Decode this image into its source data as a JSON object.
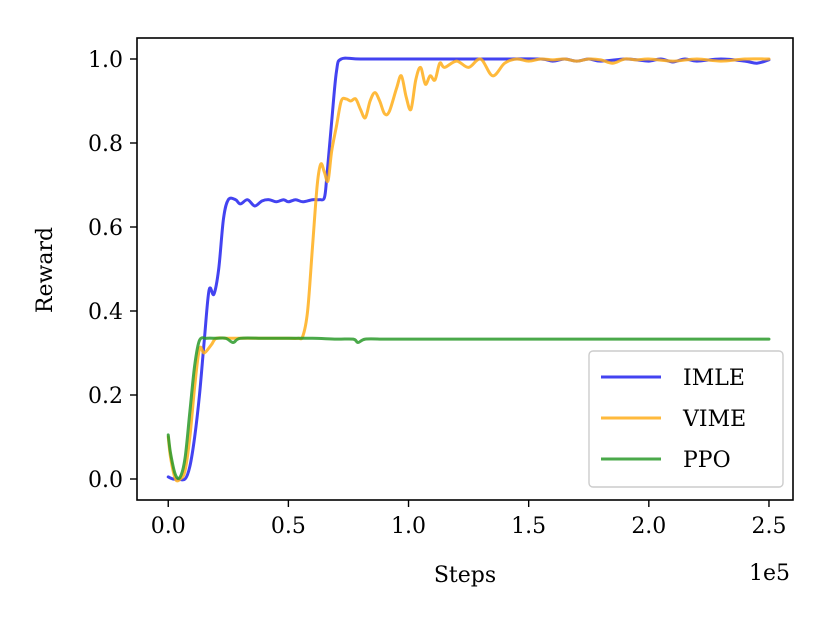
{
  "chart_data": {
    "type": "line",
    "title": "",
    "xlabel": "Steps",
    "ylabel": "Reward",
    "x_offset_label": "1e5",
    "xlim": [
      -0.13,
      2.6
    ],
    "ylim": [
      -0.05,
      1.05
    ],
    "x_ticks": [
      0.0,
      0.5,
      1.0,
      1.5,
      2.0,
      2.5
    ],
    "x_tick_labels": [
      "0.0",
      "0.5",
      "1.0",
      "1.5",
      "2.0",
      "2.5"
    ],
    "y_ticks": [
      0.0,
      0.2,
      0.4,
      0.6,
      0.8,
      1.0
    ],
    "y_tick_labels": [
      "0.0",
      "0.2",
      "0.4",
      "0.6",
      "0.8",
      "1.0"
    ],
    "grid": false,
    "legend_position": "bottom-right",
    "series": [
      {
        "name": "IMLE",
        "color": "#2222ee",
        "points": [
          [
            0.0,
            0.005
          ],
          [
            0.02,
            0.0
          ],
          [
            0.04,
            0.0
          ],
          [
            0.07,
            0.0
          ],
          [
            0.09,
            0.03
          ],
          [
            0.11,
            0.1
          ],
          [
            0.13,
            0.2
          ],
          [
            0.15,
            0.33
          ],
          [
            0.17,
            0.45
          ],
          [
            0.19,
            0.44
          ],
          [
            0.21,
            0.5
          ],
          [
            0.23,
            0.62
          ],
          [
            0.25,
            0.665
          ],
          [
            0.28,
            0.665
          ],
          [
            0.3,
            0.655
          ],
          [
            0.33,
            0.665
          ],
          [
            0.36,
            0.65
          ],
          [
            0.39,
            0.662
          ],
          [
            0.42,
            0.665
          ],
          [
            0.45,
            0.66
          ],
          [
            0.48,
            0.665
          ],
          [
            0.5,
            0.66
          ],
          [
            0.53,
            0.665
          ],
          [
            0.56,
            0.66
          ],
          [
            0.6,
            0.665
          ],
          [
            0.63,
            0.665
          ],
          [
            0.65,
            0.67
          ],
          [
            0.66,
            0.72
          ],
          [
            0.68,
            0.85
          ],
          [
            0.7,
            0.97
          ],
          [
            0.72,
            1.0
          ],
          [
            0.8,
            1.0
          ],
          [
            1.0,
            1.0
          ],
          [
            1.2,
            1.0
          ],
          [
            1.4,
            1.0
          ],
          [
            1.55,
            1.0
          ],
          [
            1.6,
            0.995
          ],
          [
            1.65,
            1.0
          ],
          [
            1.7,
            0.995
          ],
          [
            1.75,
            1.0
          ],
          [
            1.8,
            0.995
          ],
          [
            1.9,
            1.0
          ],
          [
            1.95,
            0.998
          ],
          [
            2.0,
            0.995
          ],
          [
            2.05,
            1.0
          ],
          [
            2.1,
            0.993
          ],
          [
            2.15,
            1.0
          ],
          [
            2.2,
            0.995
          ],
          [
            2.3,
            1.0
          ],
          [
            2.4,
            0.995
          ],
          [
            2.45,
            0.99
          ],
          [
            2.5,
            0.998
          ]
        ]
      },
      {
        "name": "VIME",
        "color": "#ffae1a",
        "points": [
          [
            0.0,
            0.1
          ],
          [
            0.01,
            0.05
          ],
          [
            0.03,
            0.0
          ],
          [
            0.05,
            0.0
          ],
          [
            0.07,
            0.02
          ],
          [
            0.09,
            0.1
          ],
          [
            0.11,
            0.22
          ],
          [
            0.13,
            0.31
          ],
          [
            0.15,
            0.3
          ],
          [
            0.18,
            0.32
          ],
          [
            0.2,
            0.335
          ],
          [
            0.25,
            0.335
          ],
          [
            0.35,
            0.335
          ],
          [
            0.45,
            0.335
          ],
          [
            0.5,
            0.335
          ],
          [
            0.54,
            0.335
          ],
          [
            0.56,
            0.34
          ],
          [
            0.58,
            0.4
          ],
          [
            0.6,
            0.55
          ],
          [
            0.62,
            0.7
          ],
          [
            0.635,
            0.75
          ],
          [
            0.65,
            0.73
          ],
          [
            0.665,
            0.71
          ],
          [
            0.68,
            0.78
          ],
          [
            0.7,
            0.84
          ],
          [
            0.72,
            0.9
          ],
          [
            0.74,
            0.905
          ],
          [
            0.76,
            0.9
          ],
          [
            0.78,
            0.905
          ],
          [
            0.8,
            0.88
          ],
          [
            0.82,
            0.86
          ],
          [
            0.84,
            0.9
          ],
          [
            0.86,
            0.92
          ],
          [
            0.88,
            0.9
          ],
          [
            0.9,
            0.87
          ],
          [
            0.92,
            0.875
          ],
          [
            0.95,
            0.93
          ],
          [
            0.97,
            0.96
          ],
          [
            0.99,
            0.91
          ],
          [
            1.01,
            0.88
          ],
          [
            1.03,
            0.95
          ],
          [
            1.05,
            0.98
          ],
          [
            1.07,
            0.94
          ],
          [
            1.09,
            0.96
          ],
          [
            1.11,
            0.95
          ],
          [
            1.13,
            0.99
          ],
          [
            1.15,
            0.98
          ],
          [
            1.2,
            0.995
          ],
          [
            1.25,
            0.98
          ],
          [
            1.3,
            1.0
          ],
          [
            1.35,
            0.96
          ],
          [
            1.4,
            0.99
          ],
          [
            1.45,
            1.0
          ],
          [
            1.5,
            0.995
          ],
          [
            1.55,
            1.0
          ],
          [
            1.6,
            0.998
          ],
          [
            1.65,
            1.0
          ],
          [
            1.7,
            0.995
          ],
          [
            1.75,
            1.0
          ],
          [
            1.8,
            0.998
          ],
          [
            1.85,
            0.99
          ],
          [
            1.9,
            1.0
          ],
          [
            1.95,
            0.998
          ],
          [
            2.0,
            1.0
          ],
          [
            2.1,
            0.995
          ],
          [
            2.2,
            1.0
          ],
          [
            2.3,
            0.995
          ],
          [
            2.4,
            1.0
          ],
          [
            2.5,
            1.0
          ]
        ]
      },
      {
        "name": "PPO",
        "color": "#2a9a2a",
        "points": [
          [
            0.0,
            0.105
          ],
          [
            0.01,
            0.06
          ],
          [
            0.03,
            0.01
          ],
          [
            0.05,
            0.005
          ],
          [
            0.07,
            0.05
          ],
          [
            0.09,
            0.16
          ],
          [
            0.11,
            0.27
          ],
          [
            0.13,
            0.33
          ],
          [
            0.16,
            0.335
          ],
          [
            0.2,
            0.335
          ],
          [
            0.24,
            0.335
          ],
          [
            0.27,
            0.325
          ],
          [
            0.3,
            0.335
          ],
          [
            0.4,
            0.335
          ],
          [
            0.5,
            0.335
          ],
          [
            0.6,
            0.335
          ],
          [
            0.7,
            0.333
          ],
          [
            0.77,
            0.333
          ],
          [
            0.79,
            0.325
          ],
          [
            0.82,
            0.333
          ],
          [
            0.9,
            0.333
          ],
          [
            1.0,
            0.333
          ],
          [
            1.5,
            0.333
          ],
          [
            2.0,
            0.333
          ],
          [
            2.5,
            0.333
          ]
        ]
      }
    ]
  }
}
